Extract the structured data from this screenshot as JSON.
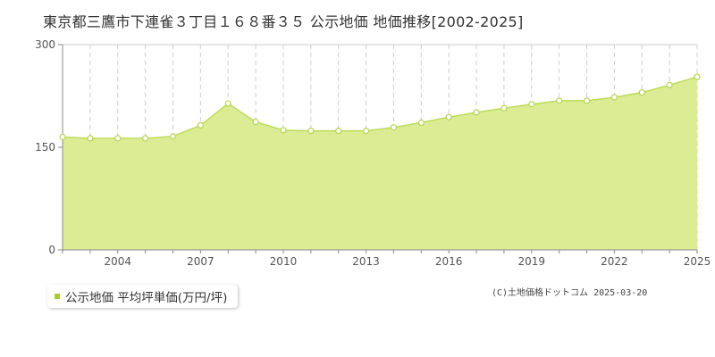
{
  "chart_data": {
    "type": "area",
    "title": "東京都三鷹市下連雀３丁目１６８番３５ 公示地価 地価推移[2002-2025]",
    "xlabel": "",
    "ylabel": "",
    "x": [
      2002,
      2003,
      2004,
      2005,
      2006,
      2007,
      2008,
      2009,
      2010,
      2011,
      2012,
      2013,
      2014,
      2015,
      2016,
      2017,
      2018,
      2019,
      2020,
      2021,
      2022,
      2023,
      2024,
      2025
    ],
    "series": [
      {
        "name": "公示地価 平均坪単価(万円/坪)",
        "values": [
          165,
          163,
          163,
          163,
          166,
          182,
          214,
          187,
          175,
          174,
          174,
          174,
          179,
          186,
          194,
          201,
          207,
          213,
          218,
          218,
          223,
          230,
          241,
          253
        ]
      }
    ],
    "x_tick_labels": [
      "2004",
      "2007",
      "2010",
      "2013",
      "2016",
      "2019",
      "2022",
      "2025"
    ],
    "y_tick_labels": [
      "0",
      "150",
      "300"
    ],
    "ylim": [
      0,
      300
    ],
    "xlim": [
      2002,
      2025
    ],
    "grid": true,
    "legend_position": "bottom-left"
  },
  "colors": {
    "fill": "#dcec94",
    "line": "#bcdc5c",
    "marker_fill": "#ffffff",
    "marker_stroke": "#b4d450",
    "grid": "#cccccc",
    "midline": "#c8d0a0",
    "axis": "#888888",
    "legend_swatch": "#a8cc38"
  },
  "copyright": "(C)土地価格ドットコム 2025-03-20"
}
